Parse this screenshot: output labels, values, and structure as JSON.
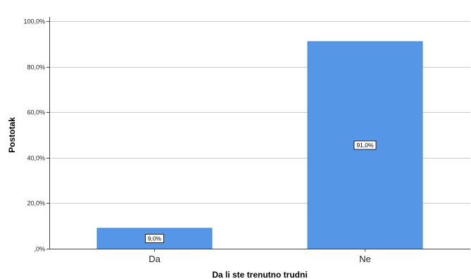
{
  "chart_data": {
    "type": "bar",
    "categories": [
      "Da",
      "Ne"
    ],
    "values": [
      9.0,
      91.0
    ],
    "data_labels": [
      "9,0%",
      "91,0%"
    ],
    "xlabel": "Da li ste trenutno trudni",
    "ylabel": "Postotak",
    "ylim": [
      0,
      100
    ],
    "yticks": [
      0,
      20,
      40,
      60,
      80,
      100
    ],
    "ytick_labels": [
      ",0%",
      "20,0%",
      "40,0%",
      "60,0%",
      "80,0%",
      "100,0%"
    ],
    "grid": true,
    "legend": "none",
    "bar_color": "#5596e6",
    "bar_edge_color": "#4a87d0"
  }
}
